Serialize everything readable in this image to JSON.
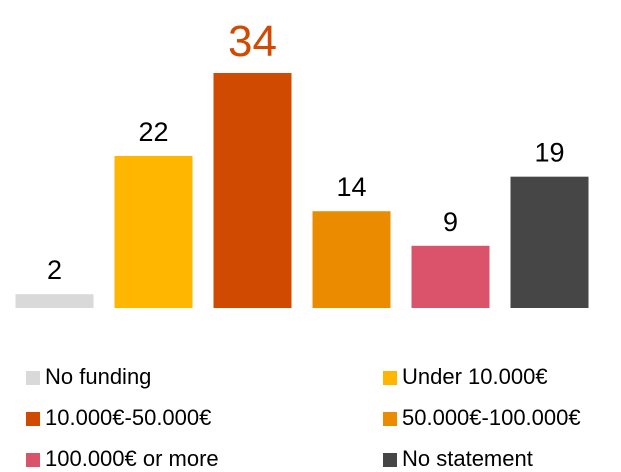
{
  "chart_data": {
    "type": "bar",
    "categories": [
      "No funding",
      "Under 10.000€",
      "10.000€-50.000€",
      "50.000€-100.000€",
      "100.000€ or more",
      "No statement"
    ],
    "values": [
      2,
      22,
      34,
      14,
      9,
      19
    ],
    "colors": [
      "#d9d9d9",
      "#ffb600",
      "#d04a02",
      "#eb8c00",
      "#db536a",
      "#464646"
    ]
  }
}
